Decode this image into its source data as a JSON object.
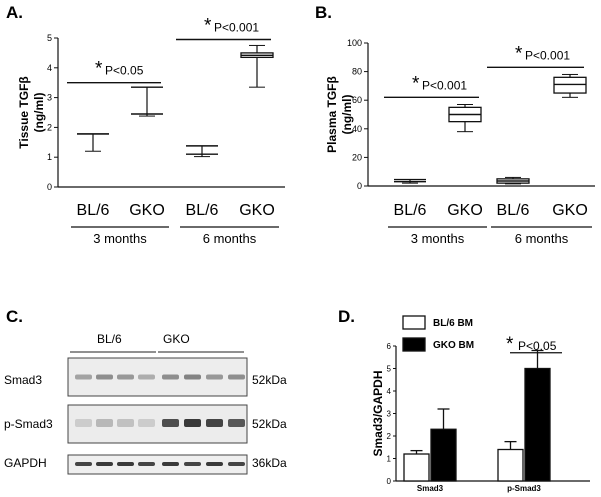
{
  "panels": {
    "A": "A.",
    "B": "B.",
    "C": "C.",
    "D": "D."
  },
  "panel_c": {
    "group_labels": [
      "BL/6",
      "GKO"
    ],
    "rows": [
      {
        "label": "Smad3",
        "kda": "52kDa"
      },
      {
        "label": "p-Smad3",
        "kda": "52kDa"
      },
      {
        "label": "GAPDH",
        "kda": "36kDa"
      }
    ]
  },
  "chart_data": [
    {
      "id": "A",
      "type": "box",
      "ylabel_line1": "Tissue TGFβ",
      "ylabel_line2": "(ng/ml)",
      "ylim": [
        0,
        5
      ],
      "yticks": [
        "0",
        "1",
        "2",
        "3",
        "4",
        "5"
      ],
      "categories": [
        "BL/6",
        "GKO",
        "BL/6",
        "GKO"
      ],
      "groups": [
        "3 months",
        "6 months"
      ],
      "boxes": [
        {
          "min": 1.2,
          "q1": 1.78,
          "median": 1.78,
          "q3": 1.78,
          "max": 1.78
        },
        {
          "min": 2.38,
          "q1": 2.4,
          "median": 2.45,
          "q3": 2.48,
          "max": 3.35
        },
        {
          "min": 1.02,
          "q1": 1.05,
          "median": 1.1,
          "q3": 1.18,
          "max": 1.38
        },
        {
          "min": 3.35,
          "q1": 4.35,
          "median": 4.42,
          "q3": 4.5,
          "max": 4.75
        }
      ],
      "significance": [
        {
          "star": "*",
          "text": "P<0.05",
          "pair": [
            0,
            1
          ],
          "y": 3.5
        },
        {
          "star": "*",
          "text": "P<0.001",
          "pair": [
            2,
            3
          ],
          "y": 4.95
        }
      ]
    },
    {
      "id": "B",
      "type": "box",
      "ylabel_line1": "Plasma TGFβ",
      "ylabel_line2": "(ng/ml)",
      "ylim": [
        0,
        100
      ],
      "yticks": [
        "0",
        "20",
        "40",
        "60",
        "80",
        "100"
      ],
      "categories": [
        "BL/6",
        "GKO",
        "BL/6",
        "GKO"
      ],
      "groups": [
        "3 months",
        "6 months"
      ],
      "boxes": [
        {
          "min": 2,
          "q1": 2.5,
          "median": 3,
          "q3": 4,
          "max": 4.5
        },
        {
          "min": 38,
          "q1": 45,
          "median": 50,
          "q3": 55,
          "max": 57
        },
        {
          "min": 1.5,
          "q1": 2,
          "median": 3.5,
          "q3": 5,
          "max": 6
        },
        {
          "min": 62,
          "q1": 65,
          "median": 71,
          "q3": 76,
          "max": 78
        }
      ],
      "significance": [
        {
          "star": "*",
          "text": "P<0.001",
          "pair": [
            0,
            1
          ],
          "y": 62
        },
        {
          "star": "*",
          "text": "P<0.001",
          "pair": [
            2,
            3
          ],
          "y": 83
        }
      ]
    },
    {
      "id": "D",
      "type": "bar",
      "ylabel": "Smad3/GAPDH",
      "ylim": [
        0,
        6
      ],
      "yticks": [
        "0",
        "1",
        "2",
        "3",
        "4",
        "5",
        "6"
      ],
      "categories": [
        "Smad3",
        "p-Smad3"
      ],
      "series": [
        {
          "name": "BL/6 BM",
          "values": [
            1.2,
            1.4
          ],
          "errors": [
            0.15,
            0.35
          ],
          "color": "#ffffff"
        },
        {
          "name": "GKO BM",
          "values": [
            2.3,
            5.0
          ],
          "errors": [
            0.9,
            0.8
          ],
          "color": "#000000"
        }
      ],
      "significance": [
        {
          "star": "*",
          "text": "P<0.05",
          "y": 5.7
        }
      ]
    }
  ]
}
